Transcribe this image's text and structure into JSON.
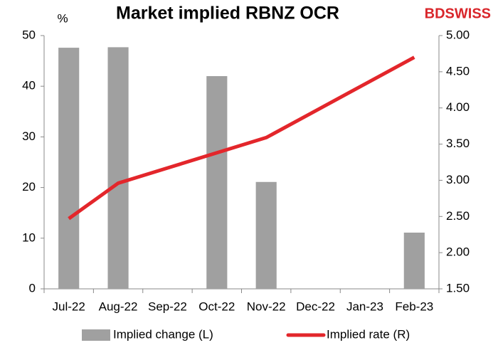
{
  "chart_data": {
    "type": "bar_line",
    "title": "Market implied RBNZ OCR",
    "y_label": "%",
    "logo": "BDSWISS",
    "categories": [
      "Jul-22",
      "Aug-22",
      "Sep-22",
      "Oct-22",
      "Nov-22",
      "Dec-22",
      "Jan-23",
      "Feb-23"
    ],
    "series": [
      {
        "name": "Implied change (L)",
        "type": "bar",
        "color": "#a0a0a0",
        "values": [
          47.6,
          47.7,
          null,
          42.0,
          21.1,
          null,
          null,
          11.1
        ]
      },
      {
        "name": "Implied rate (R)",
        "type": "line",
        "axis": "y2",
        "color": "#e3262b",
        "values": [
          2.47,
          2.96,
          3.17,
          3.38,
          3.59,
          3.96,
          4.33,
          4.7
        ]
      }
    ],
    "ylim": [
      0,
      50
    ],
    "yticks": [
      0,
      10,
      20,
      30,
      40,
      50
    ],
    "y2lim": [
      1.5,
      5.0
    ],
    "y2ticks": [
      {
        "value": 1.5,
        "label": "1.50"
      },
      {
        "value": 2.0,
        "label": "2.00"
      },
      {
        "value": 2.5,
        "label": "2.50"
      },
      {
        "value": 3.0,
        "label": "3.00"
      },
      {
        "value": 3.5,
        "label": "3.50"
      },
      {
        "value": 4.0,
        "label": "4.00"
      },
      {
        "value": 4.5,
        "label": "4.50"
      },
      {
        "value": 5.0,
        "label": "5.00"
      }
    ],
    "legend": "bottom"
  }
}
